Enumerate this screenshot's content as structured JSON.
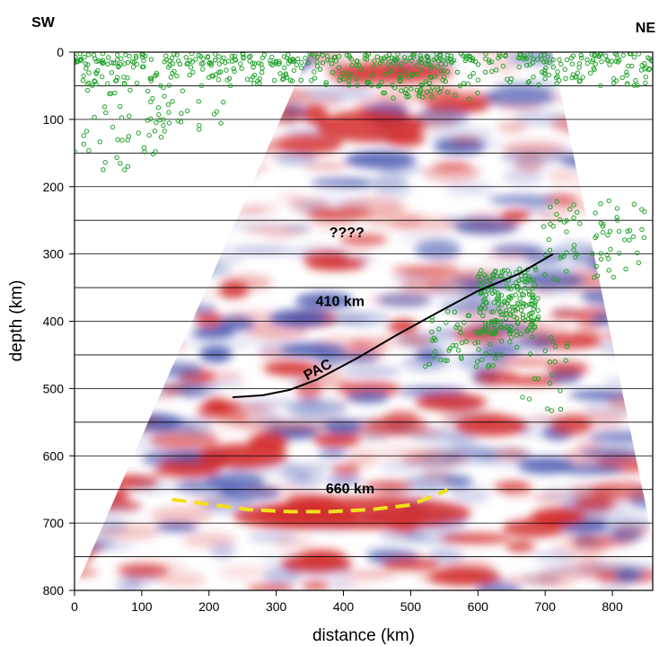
{
  "chart_data": {
    "type": "scatter",
    "title": "",
    "corner_labels": {
      "left": "SW",
      "right": "NE"
    },
    "xlabel": "distance (km)",
    "ylabel": "depth (km)",
    "xlim": [
      0,
      860
    ],
    "ylim": [
      0,
      800
    ],
    "y_inverted": true,
    "x_ticks": [
      0,
      100,
      200,
      300,
      400,
      500,
      600,
      700,
      800
    ],
    "y_ticks": [
      0,
      100,
      200,
      300,
      400,
      500,
      600,
      700,
      800
    ],
    "gridlines_depth": [
      0,
      50,
      100,
      150,
      200,
      250,
      300,
      350,
      400,
      450,
      500,
      550,
      600,
      650,
      700,
      750,
      800
    ],
    "background": "seismic migration image (red positive / blue negative amplitudes) in a triangular coverage region",
    "colors": {
      "positive": "#d42a2a",
      "negative": "#4a58b0",
      "events": "#22a32b",
      "dashed_660": "#f2df1c",
      "slab": "#000000"
    },
    "annotations": [
      {
        "text": "????",
        "x": 405,
        "y": 275
      },
      {
        "text": "410 km",
        "x": 395,
        "y": 377
      },
      {
        "text": "PAC",
        "x": 365,
        "y": 478,
        "rotation": -28
      },
      {
        "text": "660 km",
        "x": 410,
        "y": 656
      }
    ],
    "slab_line": {
      "label": "PAC",
      "x": [
        235,
        280,
        320,
        360,
        420,
        480,
        540,
        600,
        660,
        712
      ],
      "y": [
        513,
        510,
        502,
        487,
        455,
        420,
        387,
        355,
        330,
        300
      ]
    },
    "discontinuity_660": {
      "label": "660 km",
      "x": [
        145,
        200,
        260,
        320,
        380,
        440,
        500,
        555
      ],
      "y": [
        665,
        672,
        680,
        683,
        683,
        680,
        673,
        651
      ]
    },
    "events": {
      "name": "earthquakes",
      "seed": 7,
      "clusters": [
        {
          "n": 290,
          "x": [
            0,
            860
          ],
          "y": [
            2,
            18
          ]
        },
        {
          "n": 230,
          "x": [
            5,
            860
          ],
          "y": [
            18,
            50
          ]
        },
        {
          "n": 45,
          "x": [
            5,
            230
          ],
          "y": [
            50,
            120
          ]
        },
        {
          "n": 22,
          "x": [
            0,
            140
          ],
          "y": [
            120,
            185
          ]
        },
        {
          "n": 30,
          "x": [
            450,
            600
          ],
          "y": [
            50,
            70
          ]
        },
        {
          "n": 190,
          "x": [
            600,
            690
          ],
          "y": [
            320,
            420
          ]
        },
        {
          "n": 60,
          "x": [
            515,
            640
          ],
          "y": [
            380,
            470
          ]
        },
        {
          "n": 70,
          "x": [
            690,
            850
          ],
          "y": [
            220,
            340
          ]
        },
        {
          "n": 25,
          "x": [
            640,
            740
          ],
          "y": [
            420,
            535
          ]
        }
      ]
    }
  }
}
